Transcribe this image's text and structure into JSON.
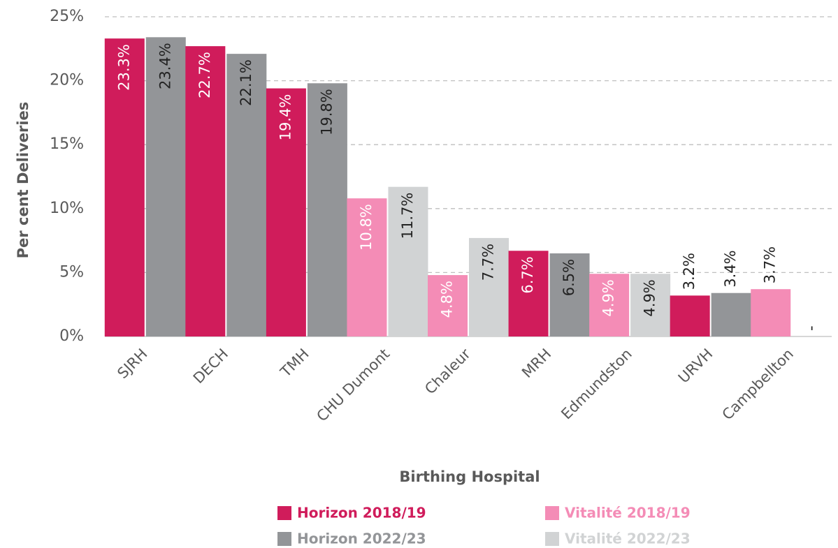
{
  "chart_data": {
    "type": "bar",
    "x_label": "Birthing Hospital",
    "y_label": "Per cent Deliveries",
    "categories": [
      "SJRH",
      "DECH",
      "TMH",
      "CHU Dumont",
      "Chaleur",
      "MRH",
      "Edmundston",
      "URVH",
      "Campbellton"
    ],
    "series": [
      {
        "name": "Horizon 2018/19",
        "color": "#d01c5b",
        "values": [
          23.3,
          22.7,
          19.4,
          null,
          null,
          6.7,
          null,
          3.2,
          null
        ],
        "value_labels": [
          "23.3%",
          "22.7%",
          "19.4%",
          null,
          null,
          "6.7%",
          null,
          "3.2%",
          null
        ]
      },
      {
        "name": "Horizon 2022/23",
        "color": "#939598",
        "values": [
          23.4,
          22.1,
          19.8,
          null,
          null,
          6.5,
          null,
          3.4,
          null
        ],
        "value_labels": [
          "23.4%",
          "22.1%",
          "19.8%",
          null,
          null,
          "6.5%",
          null,
          "3.4%",
          null
        ]
      },
      {
        "name": "Vitalité 2018/19",
        "color": "#f48cb6",
        "values": [
          null,
          null,
          null,
          10.8,
          4.8,
          null,
          4.9,
          null,
          3.7
        ],
        "value_labels": [
          null,
          null,
          null,
          "10.8%",
          "4.8%",
          null,
          "4.9%",
          null,
          "3.7%"
        ]
      },
      {
        "name": "Vitalité 2022/23",
        "color": "#d1d3d4",
        "values": [
          null,
          null,
          null,
          11.7,
          7.7,
          null,
          4.9,
          null,
          null
        ],
        "value_labels": [
          null,
          null,
          null,
          "11.7%",
          "7.7%",
          null,
          "4.9%",
          null,
          "-"
        ]
      }
    ],
    "ylim": [
      0,
      25
    ],
    "yticks": [
      {
        "value": 0,
        "label": "0%"
      },
      {
        "value": 5,
        "label": "5%"
      },
      {
        "value": 10,
        "label": "10%"
      },
      {
        "value": 15,
        "label": "15%"
      },
      {
        "value": 20,
        "label": "20%"
      },
      {
        "value": 25,
        "label": "25%"
      }
    ],
    "grid": true,
    "legend": "bottom"
  }
}
